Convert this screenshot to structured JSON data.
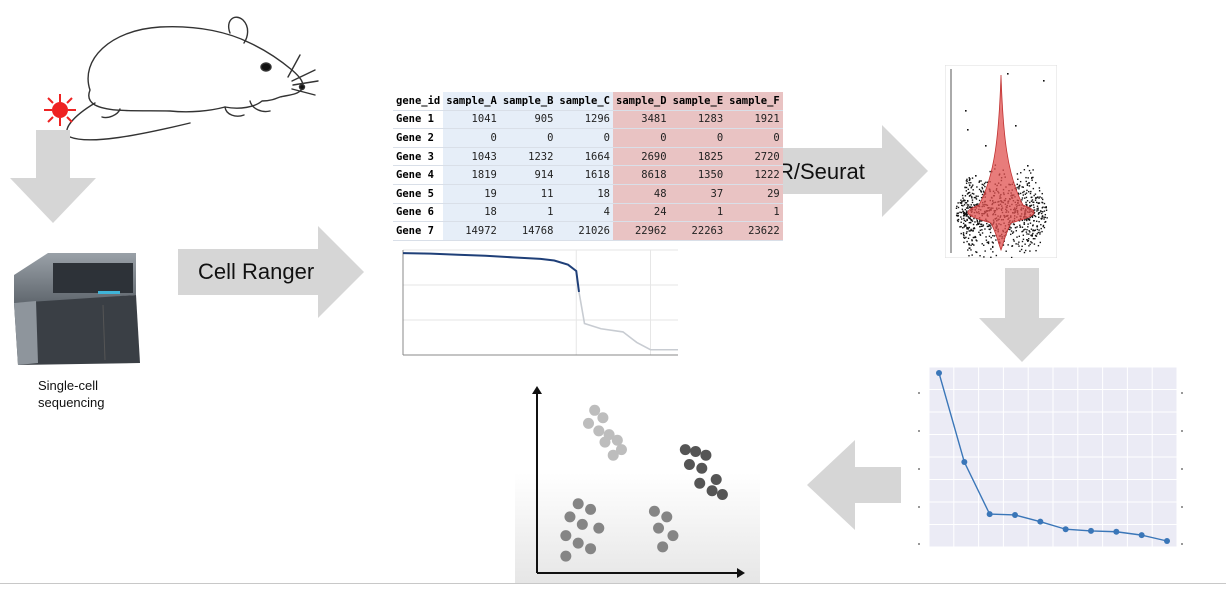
{
  "labels": {
    "cell_ranger": "Cell Ranger",
    "r_seurat": "R/Seurat",
    "sequencer_caption_line1": "Single-cell",
    "sequencer_caption_line2": "sequencing"
  },
  "count_table": {
    "headers": [
      "gene_id",
      "sample_A",
      "sample_B",
      "sample_C",
      "sample_D",
      "sample_E",
      "sample_F"
    ],
    "rows": [
      [
        "Gene 1",
        "1041",
        "905",
        "1296",
        "3481",
        "1283",
        "1921"
      ],
      [
        "Gene 2",
        "0",
        "0",
        "0",
        "0",
        "0",
        "0"
      ],
      [
        "Gene 3",
        "1043",
        "1232",
        "1664",
        "2690",
        "1825",
        "2720"
      ],
      [
        "Gene 4",
        "1819",
        "914",
        "1618",
        "8618",
        "1350",
        "1222"
      ],
      [
        "Gene 5",
        "19",
        "11",
        "18",
        "48",
        "37",
        "29"
      ],
      [
        "Gene 6",
        "18",
        "1",
        "4",
        "24",
        "1",
        "1"
      ],
      [
        "Gene 7",
        "14972",
        "14768",
        "21026",
        "22962",
        "22263",
        "23622"
      ]
    ]
  },
  "colors": {
    "arrow": "#d6d6d6",
    "table_group_a": "#e6eef8",
    "table_group_b": "#e9c3c3",
    "knee_curve": "#1f3f78",
    "violin": "#e0504f",
    "elbow_line": "#3a76b8",
    "elbow_bg": "#ebebf5",
    "laser": "#ee2222"
  },
  "chart_data": [
    {
      "type": "line",
      "name": "barcode-rank-knee",
      "points": [
        [
          0,
          0.97
        ],
        [
          0.1,
          0.965
        ],
        [
          0.2,
          0.955
        ],
        [
          0.3,
          0.945
        ],
        [
          0.4,
          0.93
        ],
        [
          0.5,
          0.915
        ],
        [
          0.55,
          0.9
        ],
        [
          0.6,
          0.86
        ],
        [
          0.63,
          0.8
        ],
        [
          0.64,
          0.6
        ],
        [
          0.66,
          0.3
        ],
        [
          0.72,
          0.25
        ],
        [
          0.8,
          0.22
        ],
        [
          0.85,
          0.12
        ],
        [
          0.9,
          0.05
        ],
        [
          1,
          0.05
        ]
      ],
      "grid": true
    },
    {
      "type": "line",
      "name": "elbow-plot",
      "x": [
        1,
        2,
        3,
        4,
        5,
        6,
        7,
        8,
        9,
        10
      ],
      "y": [
        1.0,
        0.47,
        0.16,
        0.155,
        0.115,
        0.07,
        0.06,
        0.055,
        0.035,
        0.0
      ],
      "grid": true
    },
    {
      "type": "scatter",
      "name": "cluster-plot",
      "clusters": [
        {
          "shade": "light",
          "points": [
            [
              0.28,
              0.87
            ],
            [
              0.32,
              0.83
            ],
            [
              0.25,
              0.8
            ],
            [
              0.3,
              0.76
            ],
            [
              0.35,
              0.74
            ],
            [
              0.33,
              0.7
            ],
            [
              0.39,
              0.71
            ],
            [
              0.41,
              0.66
            ],
            [
              0.37,
              0.63
            ]
          ]
        },
        {
          "shade": "dark",
          "points": [
            [
              0.72,
              0.66
            ],
            [
              0.77,
              0.65
            ],
            [
              0.82,
              0.63
            ],
            [
              0.74,
              0.58
            ],
            [
              0.8,
              0.56
            ],
            [
              0.87,
              0.5
            ],
            [
              0.79,
              0.48
            ],
            [
              0.85,
              0.44
            ],
            [
              0.9,
              0.42
            ]
          ]
        },
        {
          "shade": "medium",
          "points": [
            [
              0.2,
              0.37
            ],
            [
              0.26,
              0.34
            ],
            [
              0.16,
              0.3
            ],
            [
              0.22,
              0.26
            ],
            [
              0.3,
              0.24
            ],
            [
              0.14,
              0.2
            ],
            [
              0.2,
              0.16
            ],
            [
              0.26,
              0.13
            ],
            [
              0.14,
              0.09
            ],
            [
              0.57,
              0.33
            ],
            [
              0.63,
              0.3
            ],
            [
              0.59,
              0.24
            ],
            [
              0.66,
              0.2
            ],
            [
              0.61,
              0.14
            ]
          ]
        }
      ]
    },
    {
      "type": "violin",
      "name": "gene-expression-violin",
      "points_count": 900,
      "center": 0.5
    }
  ]
}
